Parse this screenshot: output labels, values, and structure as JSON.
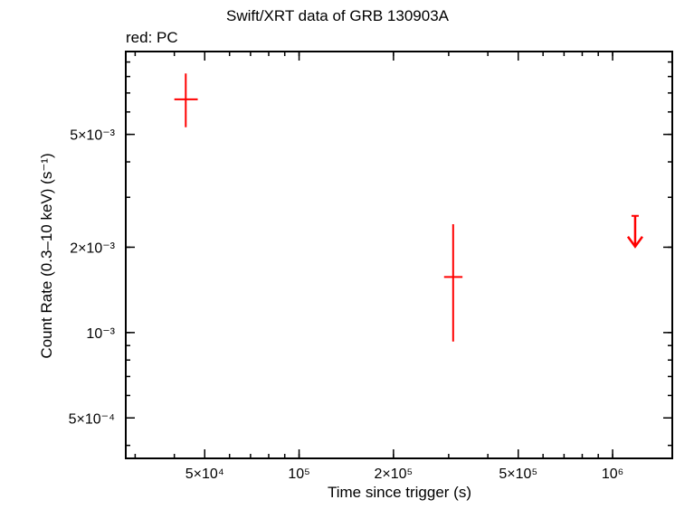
{
  "chart_data": {
    "type": "scatter",
    "title": "Swift/XRT data of GRB 130903A",
    "subtitle": "red: PC",
    "xlabel": "Time since trigger (s)",
    "ylabel": "Count Rate (0.3–10 keV) (s⁻¹)",
    "x_scale": "log",
    "y_scale": "log",
    "xlim": [
      28000,
      1550000
    ],
    "ylim": [
      0.00036,
      0.0098
    ],
    "x_ticks": [
      {
        "value": 50000,
        "label": "5×10⁴"
      },
      {
        "value": 100000,
        "label": "10⁵"
      },
      {
        "value": 200000,
        "label": "2×10⁵"
      },
      {
        "value": 500000,
        "label": "5×10⁵"
      },
      {
        "value": 1000000,
        "label": "10⁶"
      }
    ],
    "y_ticks": [
      {
        "value": 0.0005,
        "label": "5×10⁻⁴"
      },
      {
        "value": 0.001,
        "label": "10⁻³"
      },
      {
        "value": 0.002,
        "label": "2×10⁻³"
      },
      {
        "value": 0.005,
        "label": "5×10⁻³"
      }
    ],
    "grid": false,
    "series": [
      {
        "name": "PC",
        "color": "#ff0000",
        "points": [
          {
            "x": 43500,
            "xlow": 40000,
            "xhigh": 47500,
            "y": 0.00665,
            "ylow": 0.0053,
            "yhigh": 0.0082
          },
          {
            "x": 310000,
            "xlow": 290000,
            "xhigh": 332000,
            "y": 0.00157,
            "ylow": 0.00093,
            "yhigh": 0.00241
          }
        ],
        "upper_limits": [
          {
            "x": 1180000,
            "y": 0.00258
          }
        ]
      }
    ]
  }
}
